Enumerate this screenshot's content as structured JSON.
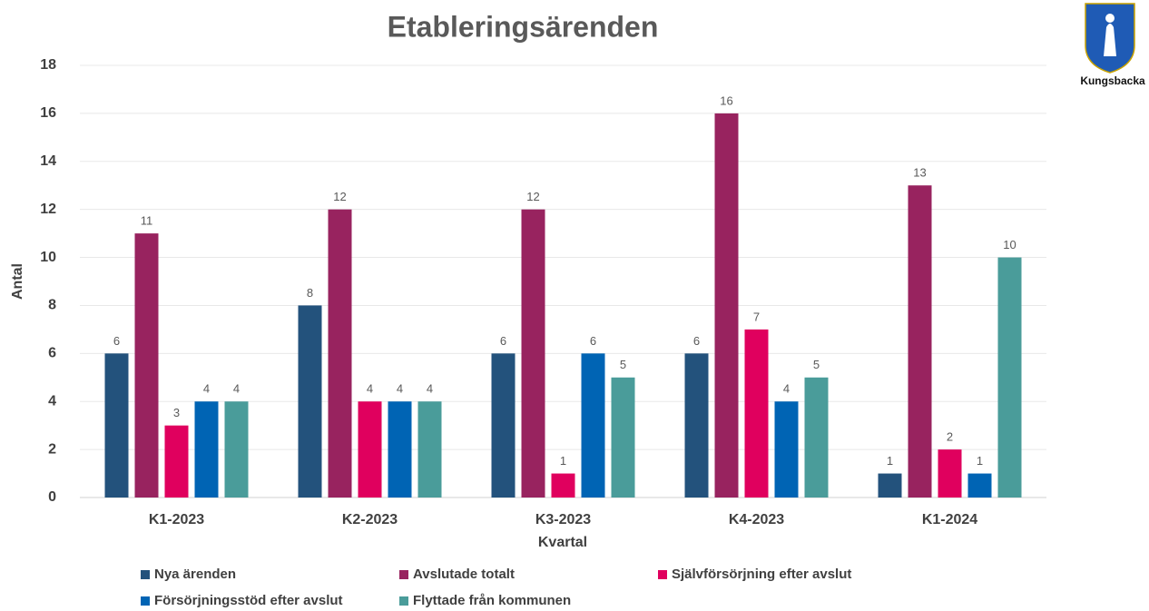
{
  "chart_data": {
    "type": "bar",
    "title": "Etableringsärenden",
    "categories": [
      "K1-2023",
      "K2-2023",
      "K3-2023",
      "K4-2023",
      "K1-2024"
    ],
    "series": [
      {
        "name": "Nya ärenden",
        "color": "#23527c",
        "values": [
          6,
          8,
          6,
          6,
          1
        ]
      },
      {
        "name": "Avslutade totalt",
        "color": "#98235f",
        "values": [
          11,
          12,
          12,
          16,
          13
        ]
      },
      {
        "name": "Självförsörjning efter avslut",
        "color": "#e0005e",
        "values": [
          3,
          4,
          1,
          7,
          2
        ]
      },
      {
        "name": "Försörjningsstöd efter avslut",
        "color": "#0064b4",
        "values": [
          4,
          4,
          6,
          4,
          1
        ]
      },
      {
        "name": "Flyttade från kommunen",
        "color": "#4a9c9a",
        "values": [
          4,
          4,
          5,
          5,
          10
        ]
      }
    ],
    "xlabel": "Kvartal",
    "ylabel": "Antal",
    "ylim": [
      0,
      18
    ],
    "yticks": [
      0,
      2,
      4,
      6,
      8,
      10,
      12,
      14,
      16,
      18
    ],
    "grid": true,
    "legend": "bottom"
  },
  "logo": {
    "text": "Kungsbacka"
  }
}
